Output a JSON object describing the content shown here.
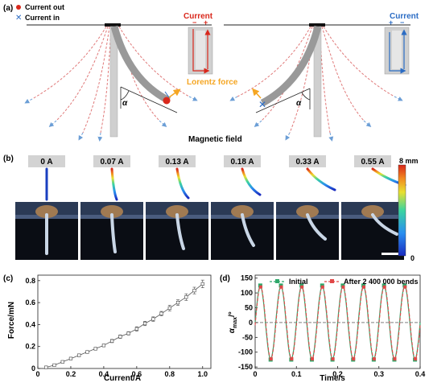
{
  "panel_a": {
    "label": "(a)",
    "legend": {
      "out": "Current out",
      "in": "Current in"
    },
    "current_left": {
      "title": "Current",
      "minus": "−",
      "plus": "+"
    },
    "current_right": {
      "title": "Current",
      "plus": "+",
      "minus": "−"
    },
    "lorentz": "Lorentz force",
    "alpha": "α",
    "magnetic_field": "Magnetic field",
    "colors": {
      "red": "#d9281c",
      "blue": "#2b6cc4",
      "orange": "#f5a623",
      "field": "#e07a7a",
      "field_blue": "#6b9ed6"
    }
  },
  "panel_b": {
    "label": "(b)",
    "currents": [
      "0 A",
      "0.07 A",
      "0.13 A",
      "0.18 A",
      "0.33 A",
      "0.55 A"
    ],
    "colorbar_max": "8 mm",
    "colorbar_min": "0"
  },
  "panel_c": {
    "label": "(c)",
    "xlabel": "Current/A",
    "ylabel": "Force/mN"
  },
  "panel_d": {
    "label": "(d)",
    "xlabel": "Time/s",
    "ylabel_main": "α",
    "ylabel_sub": "max",
    "ylabel_unit": "/°",
    "legend_initial": "Initial",
    "legend_after": "After 2 400 000 bends"
  },
  "chart_data": [
    {
      "type": "line",
      "x": [
        0.05,
        0.1,
        0.15,
        0.2,
        0.25,
        0.3,
        0.35,
        0.4,
        0.45,
        0.5,
        0.55,
        0.6,
        0.65,
        0.7,
        0.75,
        0.8,
        0.85,
        0.9,
        0.95,
        1.0
      ],
      "series": [
        {
          "values": [
            0.01,
            0.03,
            0.06,
            0.09,
            0.12,
            0.15,
            0.18,
            0.21,
            0.25,
            0.29,
            0.32,
            0.36,
            0.41,
            0.45,
            0.5,
            0.55,
            0.6,
            0.65,
            0.71,
            0.77
          ]
        }
      ],
      "error": [
        0.01,
        0.01,
        0.01,
        0.01,
        0.01,
        0.01,
        0.01,
        0.01,
        0.015,
        0.015,
        0.015,
        0.02,
        0.02,
        0.02,
        0.02,
        0.025,
        0.025,
        0.03,
        0.03,
        0.035
      ],
      "xlim": [
        0,
        1.05
      ],
      "ylim": [
        0,
        0.85
      ],
      "xticks": [
        "0",
        "0.2",
        "0.4",
        "0.6",
        "0.8",
        "1.0"
      ],
      "yticks": [
        "0",
        "0.2",
        "0.4",
        "0.6",
        "0.8"
      ]
    },
    {
      "type": "line",
      "x_range": [
        0,
        0.4
      ],
      "period": 0.05,
      "amplitude": 125,
      "phase_peak_time": 0.0125,
      "series": [
        {
          "name": "Initial",
          "color": "#2fa86a"
        },
        {
          "name": "After 2 400 000 bends",
          "color": "#e04747"
        }
      ],
      "xlim": [
        0,
        0.4
      ],
      "ylim": [
        -155,
        160
      ],
      "xticks": [
        "0",
        "0.1",
        "0.2",
        "0.3",
        "0.4"
      ],
      "yticks": [
        "150",
        "100",
        "50",
        "0",
        "-50",
        "-100",
        "-150"
      ]
    }
  ]
}
